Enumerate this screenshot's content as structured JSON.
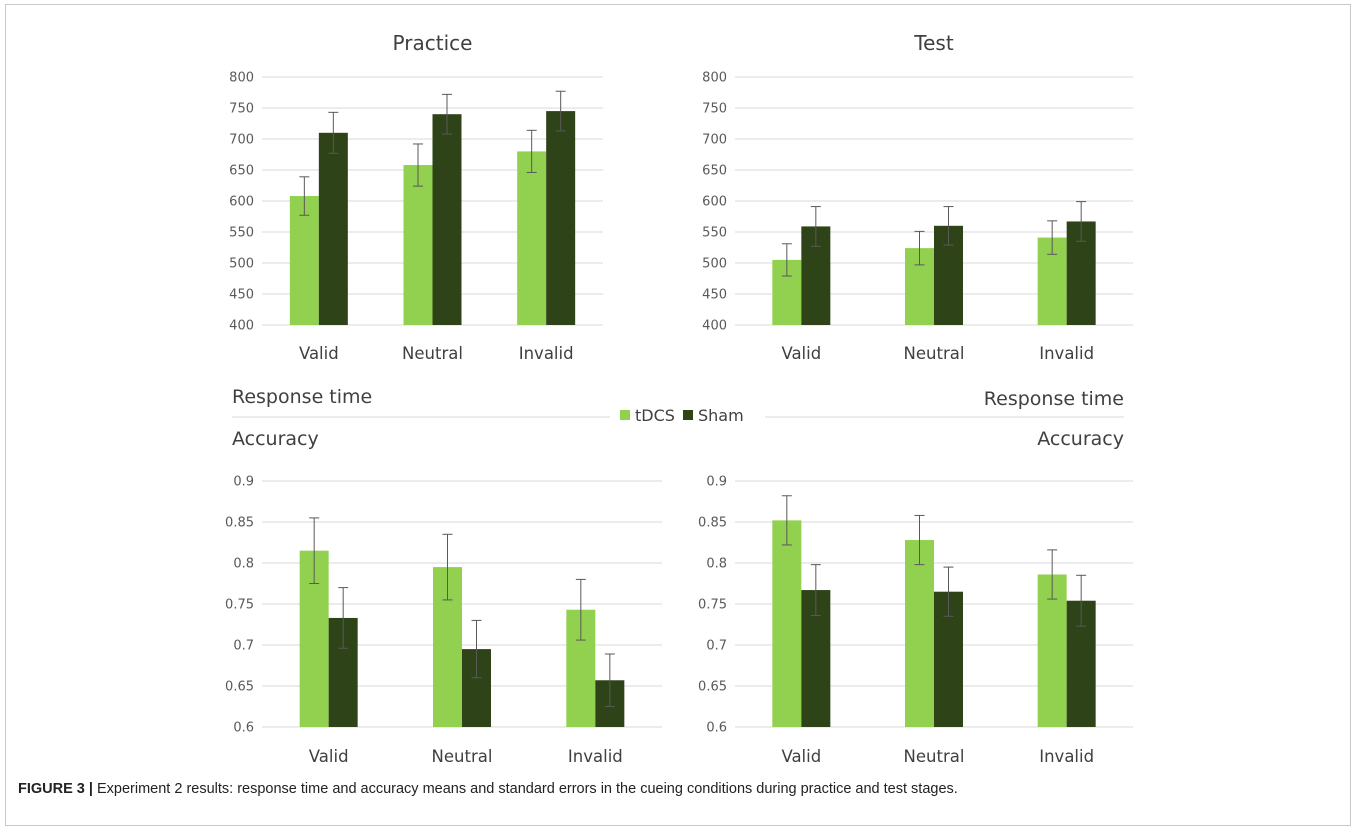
{
  "caption": {
    "label": "FIGURE 3 |",
    "text": " Experiment 2 results: response time and accuracy means and standard errors in the cueing conditions during practice and test stages."
  },
  "side_labels": {
    "left_rt": "Response time",
    "right_rt": "Response time",
    "left_acc": "Accuracy",
    "right_acc": "Accuracy"
  },
  "legend": [
    {
      "name": "tDCS",
      "color": "#92d050"
    },
    {
      "name": "Sham",
      "color": "#2e4318"
    }
  ],
  "chart_data": [
    {
      "type": "bar",
      "title": "Practice",
      "categories": [
        "Valid",
        "Neutral",
        "Invalid"
      ],
      "ylim": [
        400,
        800
      ],
      "yticks": [
        "400",
        "450",
        "500",
        "550",
        "600",
        "650",
        "700",
        "750",
        "800"
      ],
      "grid": true,
      "series": [
        {
          "name": "tDCS",
          "color": "#92d050",
          "values": [
            608,
            658,
            680
          ],
          "errors": [
            31,
            34,
            34
          ]
        },
        {
          "name": "Sham",
          "color": "#2e4318",
          "values": [
            710,
            740,
            745
          ],
          "errors": [
            33,
            32,
            32
          ]
        }
      ]
    },
    {
      "type": "bar",
      "title": "Test",
      "categories": [
        "Valid",
        "Neutral",
        "Invalid"
      ],
      "ylim": [
        400,
        800
      ],
      "yticks": [
        "400",
        "450",
        "500",
        "550",
        "600",
        "650",
        "700",
        "750",
        "800"
      ],
      "grid": true,
      "series": [
        {
          "name": "tDCS",
          "color": "#92d050",
          "values": [
            505,
            524,
            541
          ],
          "errors": [
            26,
            27,
            27
          ]
        },
        {
          "name": "Sham",
          "color": "#2e4318",
          "values": [
            559,
            560,
            567
          ],
          "errors": [
            32,
            31,
            32
          ]
        }
      ]
    },
    {
      "type": "bar",
      "title": "",
      "categories": [
        "Valid",
        "Neutral",
        "Invalid"
      ],
      "ylim": [
        0.6,
        0.9
      ],
      "yticks": [
        "0.6",
        "0.65",
        "0.7",
        "0.75",
        "0.8",
        "0.85",
        "0.9"
      ],
      "grid": true,
      "series": [
        {
          "name": "tDCS",
          "color": "#92d050",
          "values": [
            0.815,
            0.795,
            0.743
          ],
          "errors": [
            0.04,
            0.04,
            0.037
          ]
        },
        {
          "name": "Sham",
          "color": "#2e4318",
          "values": [
            0.733,
            0.695,
            0.657
          ],
          "errors": [
            0.037,
            0.035,
            0.032
          ]
        }
      ]
    },
    {
      "type": "bar",
      "title": "",
      "categories": [
        "Valid",
        "Neutral",
        "Invalid"
      ],
      "ylim": [
        0.6,
        0.9
      ],
      "yticks": [
        "0.6",
        "0.65",
        "0.7",
        "0.75",
        "0.8",
        "0.85",
        "0.9"
      ],
      "grid": true,
      "series": [
        {
          "name": "tDCS",
          "color": "#92d050",
          "values": [
            0.852,
            0.828,
            0.786
          ],
          "errors": [
            0.03,
            0.03,
            0.03
          ]
        },
        {
          "name": "Sham",
          "color": "#2e4318",
          "values": [
            0.767,
            0.765,
            0.754
          ],
          "errors": [
            0.031,
            0.03,
            0.031
          ]
        }
      ]
    }
  ]
}
